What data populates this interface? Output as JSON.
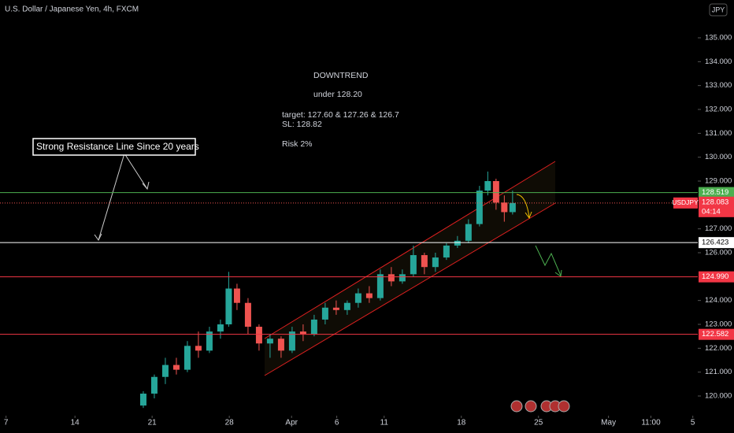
{
  "chart_data": {
    "type": "candlestick",
    "title": "U.S. Dollar / Japanese Yen, 4h, FXCM",
    "currency_button": "JPY",
    "series": [
      {
        "name": "USDJPY",
        "up_color": "#26a69a",
        "down_color": "#ef5350",
        "x": [
          26,
          28,
          30,
          32,
          34,
          36,
          38,
          40,
          41.5,
          43,
          45,
          47,
          49,
          51,
          53,
          55,
          57,
          59,
          61,
          63,
          65,
          67,
          69,
          71,
          73,
          75,
          77,
          79,
          81,
          83,
          85,
          87,
          88.5,
          90,
          91.5,
          93
        ],
        "open": [
          119.6,
          120.1,
          120.8,
          121.3,
          121.1,
          122.1,
          121.9,
          122.7,
          123.0,
          124.5,
          123.9,
          122.9,
          122.2,
          122.4,
          121.9,
          122.7,
          122.6,
          123.2,
          123.7,
          123.6,
          123.9,
          124.3,
          124.1,
          125.1,
          124.8,
          125.1,
          125.9,
          125.4,
          125.8,
          126.3,
          126.5,
          127.2,
          128.6,
          129.0,
          128.1,
          127.7
        ],
        "high": [
          120.2,
          120.9,
          121.6,
          121.6,
          122.3,
          122.7,
          122.9,
          123.2,
          125.2,
          124.7,
          124.1,
          123.0,
          122.6,
          122.5,
          122.9,
          123.0,
          123.4,
          123.9,
          124.0,
          124.0,
          124.5,
          124.6,
          125.3,
          125.4,
          125.3,
          126.3,
          126.0,
          126.0,
          126.4,
          126.7,
          127.4,
          128.8,
          129.4,
          129.1,
          128.4,
          128.6
        ],
        "low": [
          119.5,
          119.9,
          120.5,
          120.9,
          121.0,
          121.6,
          121.8,
          122.4,
          122.9,
          123.6,
          122.6,
          121.9,
          121.6,
          121.6,
          121.8,
          122.3,
          122.5,
          123.0,
          123.4,
          123.4,
          123.7,
          123.9,
          124.0,
          124.6,
          124.7,
          125.0,
          125.1,
          125.2,
          125.7,
          126.2,
          126.4,
          127.1,
          128.4,
          127.8,
          127.3,
          127.6
        ],
        "close": [
          120.1,
          120.8,
          121.3,
          121.1,
          122.1,
          121.9,
          122.7,
          123.0,
          124.5,
          123.9,
          122.9,
          122.2,
          122.4,
          121.9,
          122.7,
          122.6,
          123.2,
          123.7,
          123.6,
          123.9,
          124.3,
          124.1,
          125.1,
          124.8,
          125.1,
          125.9,
          125.4,
          125.8,
          126.3,
          126.5,
          127.2,
          128.6,
          129.0,
          128.1,
          127.7,
          128.083
        ],
        "last_label": "128.083"
      }
    ],
    "countdown": "04:14",
    "levels": {
      "values": [
        128.519,
        126.423,
        124.99,
        122.582
      ],
      "value_labels": [
        "128.519",
        "126.423",
        "124.990",
        "122.582"
      ],
      "colors": [
        "#4caf50",
        "#ffffff",
        "#f23645",
        "#f23645"
      ]
    },
    "xlim": [
      0,
      126.6
    ],
    "xticks": [
      {
        "value": 1.1,
        "label": "7"
      },
      {
        "value": 13.6,
        "label": "14"
      },
      {
        "value": 27.6,
        "label": "21"
      },
      {
        "value": 41.6,
        "label": "28"
      },
      {
        "value": 52.9,
        "label": "Apr"
      },
      {
        "value": 61.1,
        "label": "6"
      },
      {
        "value": 69.7,
        "label": "11"
      },
      {
        "value": 83.7,
        "label": "18"
      },
      {
        "value": 97.7,
        "label": "25"
      },
      {
        "value": 110.4,
        "label": "May"
      },
      {
        "value": 118.1,
        "label": "11:00"
      },
      {
        "value": 125.7,
        "label": "5"
      }
    ],
    "ylim": [
      119.176,
      136.583
    ],
    "yticks": [
      {
        "value": 120,
        "label": "120.000"
      },
      {
        "value": 121,
        "label": "121.000"
      },
      {
        "value": 122,
        "label": "122.000"
      },
      {
        "value": 123,
        "label": "123.000"
      },
      {
        "value": 124,
        "label": "124.000"
      },
      {
        "value": 126,
        "label": "126.000"
      },
      {
        "value": 127,
        "label": "127.000"
      },
      {
        "value": 129,
        "label": "129.000"
      },
      {
        "value": 130,
        "label": "130.000"
      },
      {
        "value": 131,
        "label": "131.000"
      },
      {
        "value": 132,
        "label": "132.000"
      },
      {
        "value": 133,
        "label": "133.000"
      },
      {
        "value": 134,
        "label": "134.000"
      },
      {
        "value": 135,
        "label": "135.000"
      }
    ],
    "annotations": {
      "downtrend": "DOWNTREND",
      "under": "under 128.20",
      "target": "target: 127.60 & 127.26 & 126.7",
      "sl": "SL: 128.82",
      "risk": "Risk 2%",
      "resistance": "Strong Resistance Line Since 20 years"
    }
  }
}
